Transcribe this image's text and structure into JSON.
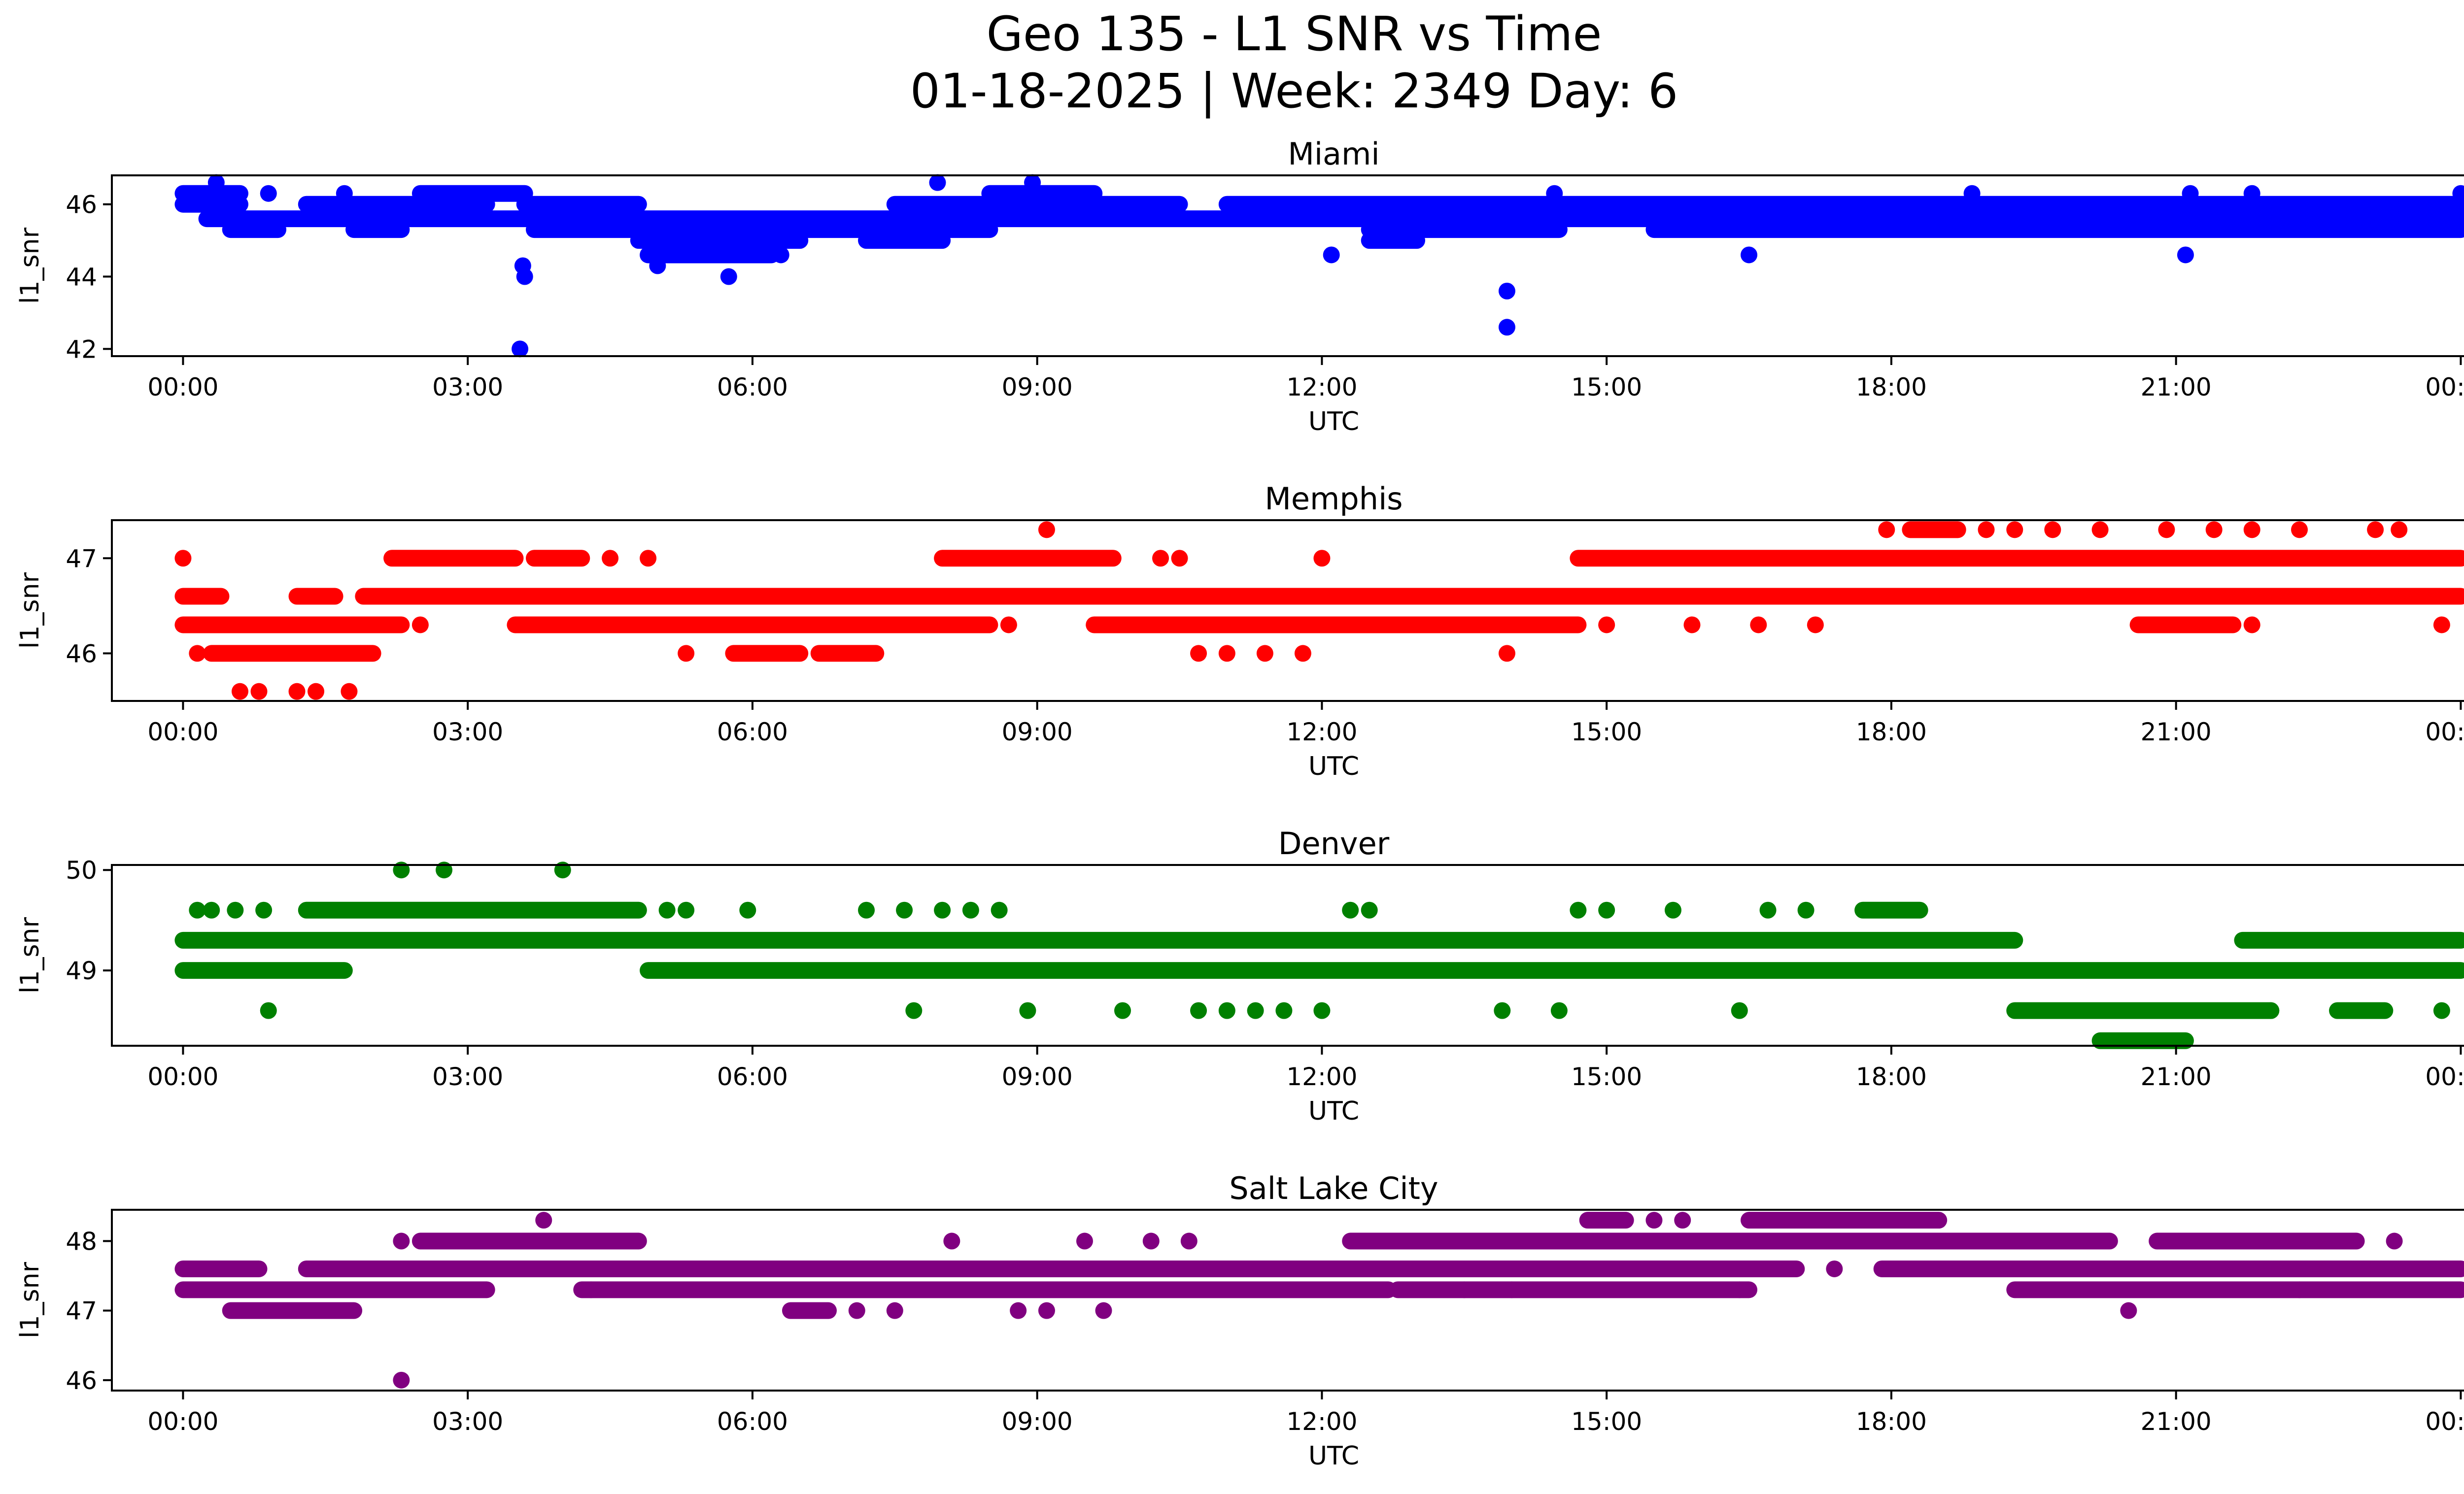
{
  "figure": {
    "title_line1": "Geo 135 - L1 SNR vs Time",
    "title_line2": "01-18-2025 | Week: 2349 Day: 6"
  },
  "chart_data": [
    {
      "type": "scatter",
      "title": "Miami",
      "xlabel": "UTC",
      "ylabel": "l1_snr",
      "color": "#0000ff",
      "xlim_hours": [
        -0.75,
        25.0
      ],
      "ylim": [
        41.8,
        46.8
      ],
      "xticks": [
        0,
        3,
        6,
        9,
        12,
        15,
        18,
        21,
        24
      ],
      "xtick_labels": [
        "00:00",
        "03:00",
        "06:00",
        "09:00",
        "12:00",
        "15:00",
        "18:00",
        "21:00",
        "00:00"
      ],
      "yticks": [
        42,
        44,
        46
      ],
      "ytick_labels": [
        "42",
        "44",
        "46"
      ],
      "bands": [
        {
          "y": 45.6,
          "ranges": [
            [
              0.25,
              24.0
            ]
          ],
          "note": "dense baseline"
        },
        {
          "y": 45.3,
          "ranges": [
            [
              0.5,
              1.0
            ],
            [
              1.8,
              2.3
            ],
            [
              3.7,
              8.5
            ],
            [
              12.5,
              14.5
            ],
            [
              15.5,
              24.0
            ]
          ]
        },
        {
          "y": 46.0,
          "ranges": [
            [
              0.0,
              0.6
            ],
            [
              1.3,
              3.2
            ],
            [
              3.6,
              4.8
            ],
            [
              7.5,
              10.5
            ],
            [
              11.0,
              24.0
            ]
          ]
        },
        {
          "y": 46.3,
          "ranges": [
            [
              0.0,
              0.6
            ],
            [
              2.5,
              3.6
            ],
            [
              8.5,
              9.6
            ]
          ]
        },
        {
          "y": 45.0,
          "ranges": [
            [
              4.8,
              6.5
            ],
            [
              7.2,
              8.0
            ],
            [
              12.5,
              13.0
            ]
          ]
        },
        {
          "y": 44.6,
          "ranges": [
            [
              4.9,
              6.2
            ]
          ]
        }
      ],
      "points": [
        {
          "x": 0.35,
          "y": 46.6
        },
        {
          "x": 0.9,
          "y": 46.3
        },
        {
          "x": 1.7,
          "y": 46.3
        },
        {
          "x": 3.58,
          "y": 44.3
        },
        {
          "x": 3.6,
          "y": 44.0
        },
        {
          "x": 3.55,
          "y": 42.0
        },
        {
          "x": 5.0,
          "y": 44.3
        },
        {
          "x": 5.75,
          "y": 44.0
        },
        {
          "x": 6.3,
          "y": 44.6
        },
        {
          "x": 7.95,
          "y": 46.6
        },
        {
          "x": 8.95,
          "y": 46.6
        },
        {
          "x": 12.1,
          "y": 44.6
        },
        {
          "x": 13.95,
          "y": 43.6
        },
        {
          "x": 13.95,
          "y": 42.6
        },
        {
          "x": 14.45,
          "y": 46.3
        },
        {
          "x": 16.5,
          "y": 44.6
        },
        {
          "x": 18.85,
          "y": 46.3
        },
        {
          "x": 21.1,
          "y": 44.6
        },
        {
          "x": 21.15,
          "y": 46.3
        },
        {
          "x": 21.8,
          "y": 46.3
        },
        {
          "x": 24.0,
          "y": 46.3
        }
      ]
    },
    {
      "type": "scatter",
      "title": "Memphis",
      "xlabel": "UTC",
      "ylabel": "l1_snr",
      "color": "#ff0000",
      "xlim_hours": [
        -0.75,
        25.0
      ],
      "ylim": [
        45.5,
        47.4
      ],
      "xticks": [
        0,
        3,
        6,
        9,
        12,
        15,
        18,
        21,
        24
      ],
      "xtick_labels": [
        "00:00",
        "03:00",
        "06:00",
        "09:00",
        "12:00",
        "15:00",
        "18:00",
        "21:00",
        "00:00"
      ],
      "yticks": [
        46,
        47
      ],
      "ytick_labels": [
        "46",
        "47"
      ],
      "bands": [
        {
          "y": 46.6,
          "ranges": [
            [
              0.0,
              0.4
            ],
            [
              1.2,
              1.6
            ],
            [
              1.9,
              24.0
            ]
          ],
          "note": "dense baseline"
        },
        {
          "y": 46.3,
          "ranges": [
            [
              0.0,
              2.3
            ],
            [
              3.5,
              8.5
            ],
            [
              9.6,
              14.7
            ],
            [
              20.6,
              21.6
            ]
          ]
        },
        {
          "y": 47.0,
          "ranges": [
            [
              2.2,
              3.5
            ],
            [
              3.7,
              4.2
            ],
            [
              8.0,
              9.8
            ],
            [
              14.7,
              24.0
            ]
          ]
        },
        {
          "y": 46.0,
          "ranges": [
            [
              0.3,
              2.0
            ],
            [
              5.8,
              6.5
            ],
            [
              6.7,
              7.3
            ]
          ]
        },
        {
          "y": 47.3,
          "ranges": [
            [
              18.2,
              18.7
            ]
          ]
        }
      ],
      "points": [
        {
          "x": 0.0,
          "y": 47.0
        },
        {
          "x": 0.15,
          "y": 46.0
        },
        {
          "x": 0.6,
          "y": 45.6
        },
        {
          "x": 0.8,
          "y": 45.6
        },
        {
          "x": 1.2,
          "y": 45.6
        },
        {
          "x": 1.4,
          "y": 45.6
        },
        {
          "x": 1.75,
          "y": 45.6
        },
        {
          "x": 2.5,
          "y": 46.3
        },
        {
          "x": 4.5,
          "y": 47.0
        },
        {
          "x": 4.9,
          "y": 47.0
        },
        {
          "x": 5.3,
          "y": 46.0
        },
        {
          "x": 8.7,
          "y": 46.3
        },
        {
          "x": 9.1,
          "y": 47.3
        },
        {
          "x": 10.3,
          "y": 47.0
        },
        {
          "x": 10.5,
          "y": 47.0
        },
        {
          "x": 10.7,
          "y": 46.0
        },
        {
          "x": 11.0,
          "y": 46.0
        },
        {
          "x": 11.4,
          "y": 46.0
        },
        {
          "x": 11.8,
          "y": 46.0
        },
        {
          "x": 12.0,
          "y": 47.0
        },
        {
          "x": 13.95,
          "y": 46.0
        },
        {
          "x": 15.0,
          "y": 46.3
        },
        {
          "x": 15.9,
          "y": 46.3
        },
        {
          "x": 16.6,
          "y": 46.3
        },
        {
          "x": 17.2,
          "y": 46.3
        },
        {
          "x": 17.95,
          "y": 47.3
        },
        {
          "x": 19.0,
          "y": 47.3
        },
        {
          "x": 19.3,
          "y": 47.3
        },
        {
          "x": 19.7,
          "y": 47.3
        },
        {
          "x": 20.2,
          "y": 47.3
        },
        {
          "x": 20.9,
          "y": 47.3
        },
        {
          "x": 21.4,
          "y": 47.3
        },
        {
          "x": 21.8,
          "y": 47.3
        },
        {
          "x": 22.3,
          "y": 47.3
        },
        {
          "x": 23.1,
          "y": 47.3
        },
        {
          "x": 23.35,
          "y": 47.3
        },
        {
          "x": 21.8,
          "y": 46.3
        },
        {
          "x": 23.8,
          "y": 46.3
        }
      ]
    },
    {
      "type": "scatter",
      "title": "Denver",
      "xlabel": "UTC",
      "ylabel": "l1_snr",
      "color": "#008000",
      "xlim_hours": [
        -0.75,
        25.0
      ],
      "ylim": [
        48.25,
        50.05
      ],
      "xticks": [
        0,
        3,
        6,
        9,
        12,
        15,
        18,
        21,
        24
      ],
      "xtick_labels": [
        "00:00",
        "03:00",
        "06:00",
        "09:00",
        "12:00",
        "15:00",
        "18:00",
        "21:00",
        "00:00"
      ],
      "yticks": [
        49,
        50
      ],
      "ytick_labels": [
        "49",
        "50"
      ],
      "bands": [
        {
          "y": 49.3,
          "ranges": [
            [
              0.0,
              19.3
            ],
            [
              21.7,
              24.0
            ]
          ]
        },
        {
          "y": 49.0,
          "ranges": [
            [
              0.0,
              1.7
            ],
            [
              4.9,
              24.0
            ]
          ]
        },
        {
          "y": 49.6,
          "ranges": [
            [
              1.3,
              4.8
            ],
            [
              17.7,
              18.3
            ]
          ]
        },
        {
          "y": 48.6,
          "ranges": [
            [
              19.3,
              22.0
            ],
            [
              22.7,
              23.2
            ]
          ]
        },
        {
          "y": 48.3,
          "ranges": [
            [
              20.2,
              21.1
            ]
          ]
        }
      ],
      "points": [
        {
          "x": 0.15,
          "y": 49.6
        },
        {
          "x": 0.3,
          "y": 49.6
        },
        {
          "x": 0.55,
          "y": 49.6
        },
        {
          "x": 0.85,
          "y": 49.6
        },
        {
          "x": 0.9,
          "y": 48.6
        },
        {
          "x": 2.3,
          "y": 50.0
        },
        {
          "x": 2.75,
          "y": 50.0
        },
        {
          "x": 4.0,
          "y": 50.0
        },
        {
          "x": 5.1,
          "y": 49.6
        },
        {
          "x": 5.3,
          "y": 49.6
        },
        {
          "x": 5.95,
          "y": 49.6
        },
        {
          "x": 7.2,
          "y": 49.6
        },
        {
          "x": 7.6,
          "y": 49.6
        },
        {
          "x": 7.7,
          "y": 48.6
        },
        {
          "x": 8.0,
          "y": 49.6
        },
        {
          "x": 8.3,
          "y": 49.6
        },
        {
          "x": 8.6,
          "y": 49.6
        },
        {
          "x": 8.9,
          "y": 48.6
        },
        {
          "x": 9.9,
          "y": 48.6
        },
        {
          "x": 10.7,
          "y": 48.6
        },
        {
          "x": 11.0,
          "y": 48.6
        },
        {
          "x": 11.3,
          "y": 48.6
        },
        {
          "x": 11.6,
          "y": 48.6
        },
        {
          "x": 12.0,
          "y": 48.6
        },
        {
          "x": 12.3,
          "y": 49.6
        },
        {
          "x": 12.5,
          "y": 49.6
        },
        {
          "x": 13.9,
          "y": 48.6
        },
        {
          "x": 14.5,
          "y": 48.6
        },
        {
          "x": 14.7,
          "y": 49.6
        },
        {
          "x": 15.0,
          "y": 49.6
        },
        {
          "x": 15.7,
          "y": 49.6
        },
        {
          "x": 16.4,
          "y": 48.6
        },
        {
          "x": 16.7,
          "y": 49.6
        },
        {
          "x": 17.1,
          "y": 49.6
        },
        {
          "x": 22.0,
          "y": 48.6
        },
        {
          "x": 23.8,
          "y": 48.6
        }
      ]
    },
    {
      "type": "scatter",
      "title": "Salt Lake City",
      "xlabel": "UTC",
      "ylabel": "l1_snr",
      "color": "#800080",
      "xlim_hours": [
        -0.75,
        25.0
      ],
      "ylim": [
        45.85,
        48.45
      ],
      "xticks": [
        0,
        3,
        6,
        9,
        12,
        15,
        18,
        21,
        24
      ],
      "xtick_labels": [
        "00:00",
        "03:00",
        "06:00",
        "09:00",
        "12:00",
        "15:00",
        "18:00",
        "21:00",
        "00:00"
      ],
      "yticks": [
        46,
        47,
        48
      ],
      "ytick_labels": [
        "46",
        "47",
        "48"
      ],
      "bands": [
        {
          "y": 47.6,
          "ranges": [
            [
              0.0,
              0.8
            ],
            [
              1.3,
              17.0
            ],
            [
              17.9,
              24.0
            ]
          ]
        },
        {
          "y": 47.3,
          "ranges": [
            [
              0.0,
              3.2
            ],
            [
              4.2,
              12.7
            ],
            [
              12.8,
              16.5
            ],
            [
              19.3,
              24.0
            ]
          ]
        },
        {
          "y": 48.0,
          "ranges": [
            [
              2.5,
              4.8
            ],
            [
              12.3,
              20.3
            ],
            [
              20.8,
              22.9
            ]
          ]
        },
        {
          "y": 47.0,
          "ranges": [
            [
              0.5,
              1.8
            ],
            [
              6.4,
              6.8
            ]
          ]
        },
        {
          "y": 48.3,
          "ranges": [
            [
              16.5,
              18.5
            ],
            [
              14.8,
              15.2
            ]
          ]
        }
      ],
      "points": [
        {
          "x": 2.3,
          "y": 46.0
        },
        {
          "x": 2.3,
          "y": 48.0
        },
        {
          "x": 3.8,
          "y": 48.3
        },
        {
          "x": 4.3,
          "y": 47.3
        },
        {
          "x": 7.1,
          "y": 47.0
        },
        {
          "x": 7.5,
          "y": 47.0
        },
        {
          "x": 8.1,
          "y": 48.0
        },
        {
          "x": 8.8,
          "y": 47.0
        },
        {
          "x": 9.1,
          "y": 47.0
        },
        {
          "x": 9.5,
          "y": 48.0
        },
        {
          "x": 9.7,
          "y": 47.0
        },
        {
          "x": 10.2,
          "y": 48.0
        },
        {
          "x": 10.6,
          "y": 48.0
        },
        {
          "x": 13.5,
          "y": 47.3
        },
        {
          "x": 14.0,
          "y": 47.3
        },
        {
          "x": 15.5,
          "y": 48.3
        },
        {
          "x": 15.8,
          "y": 48.3
        },
        {
          "x": 16.4,
          "y": 47.3
        },
        {
          "x": 17.4,
          "y": 47.6
        },
        {
          "x": 20.5,
          "y": 47.0
        },
        {
          "x": 22.3,
          "y": 47.3
        },
        {
          "x": 23.3,
          "y": 48.0
        }
      ]
    }
  ]
}
